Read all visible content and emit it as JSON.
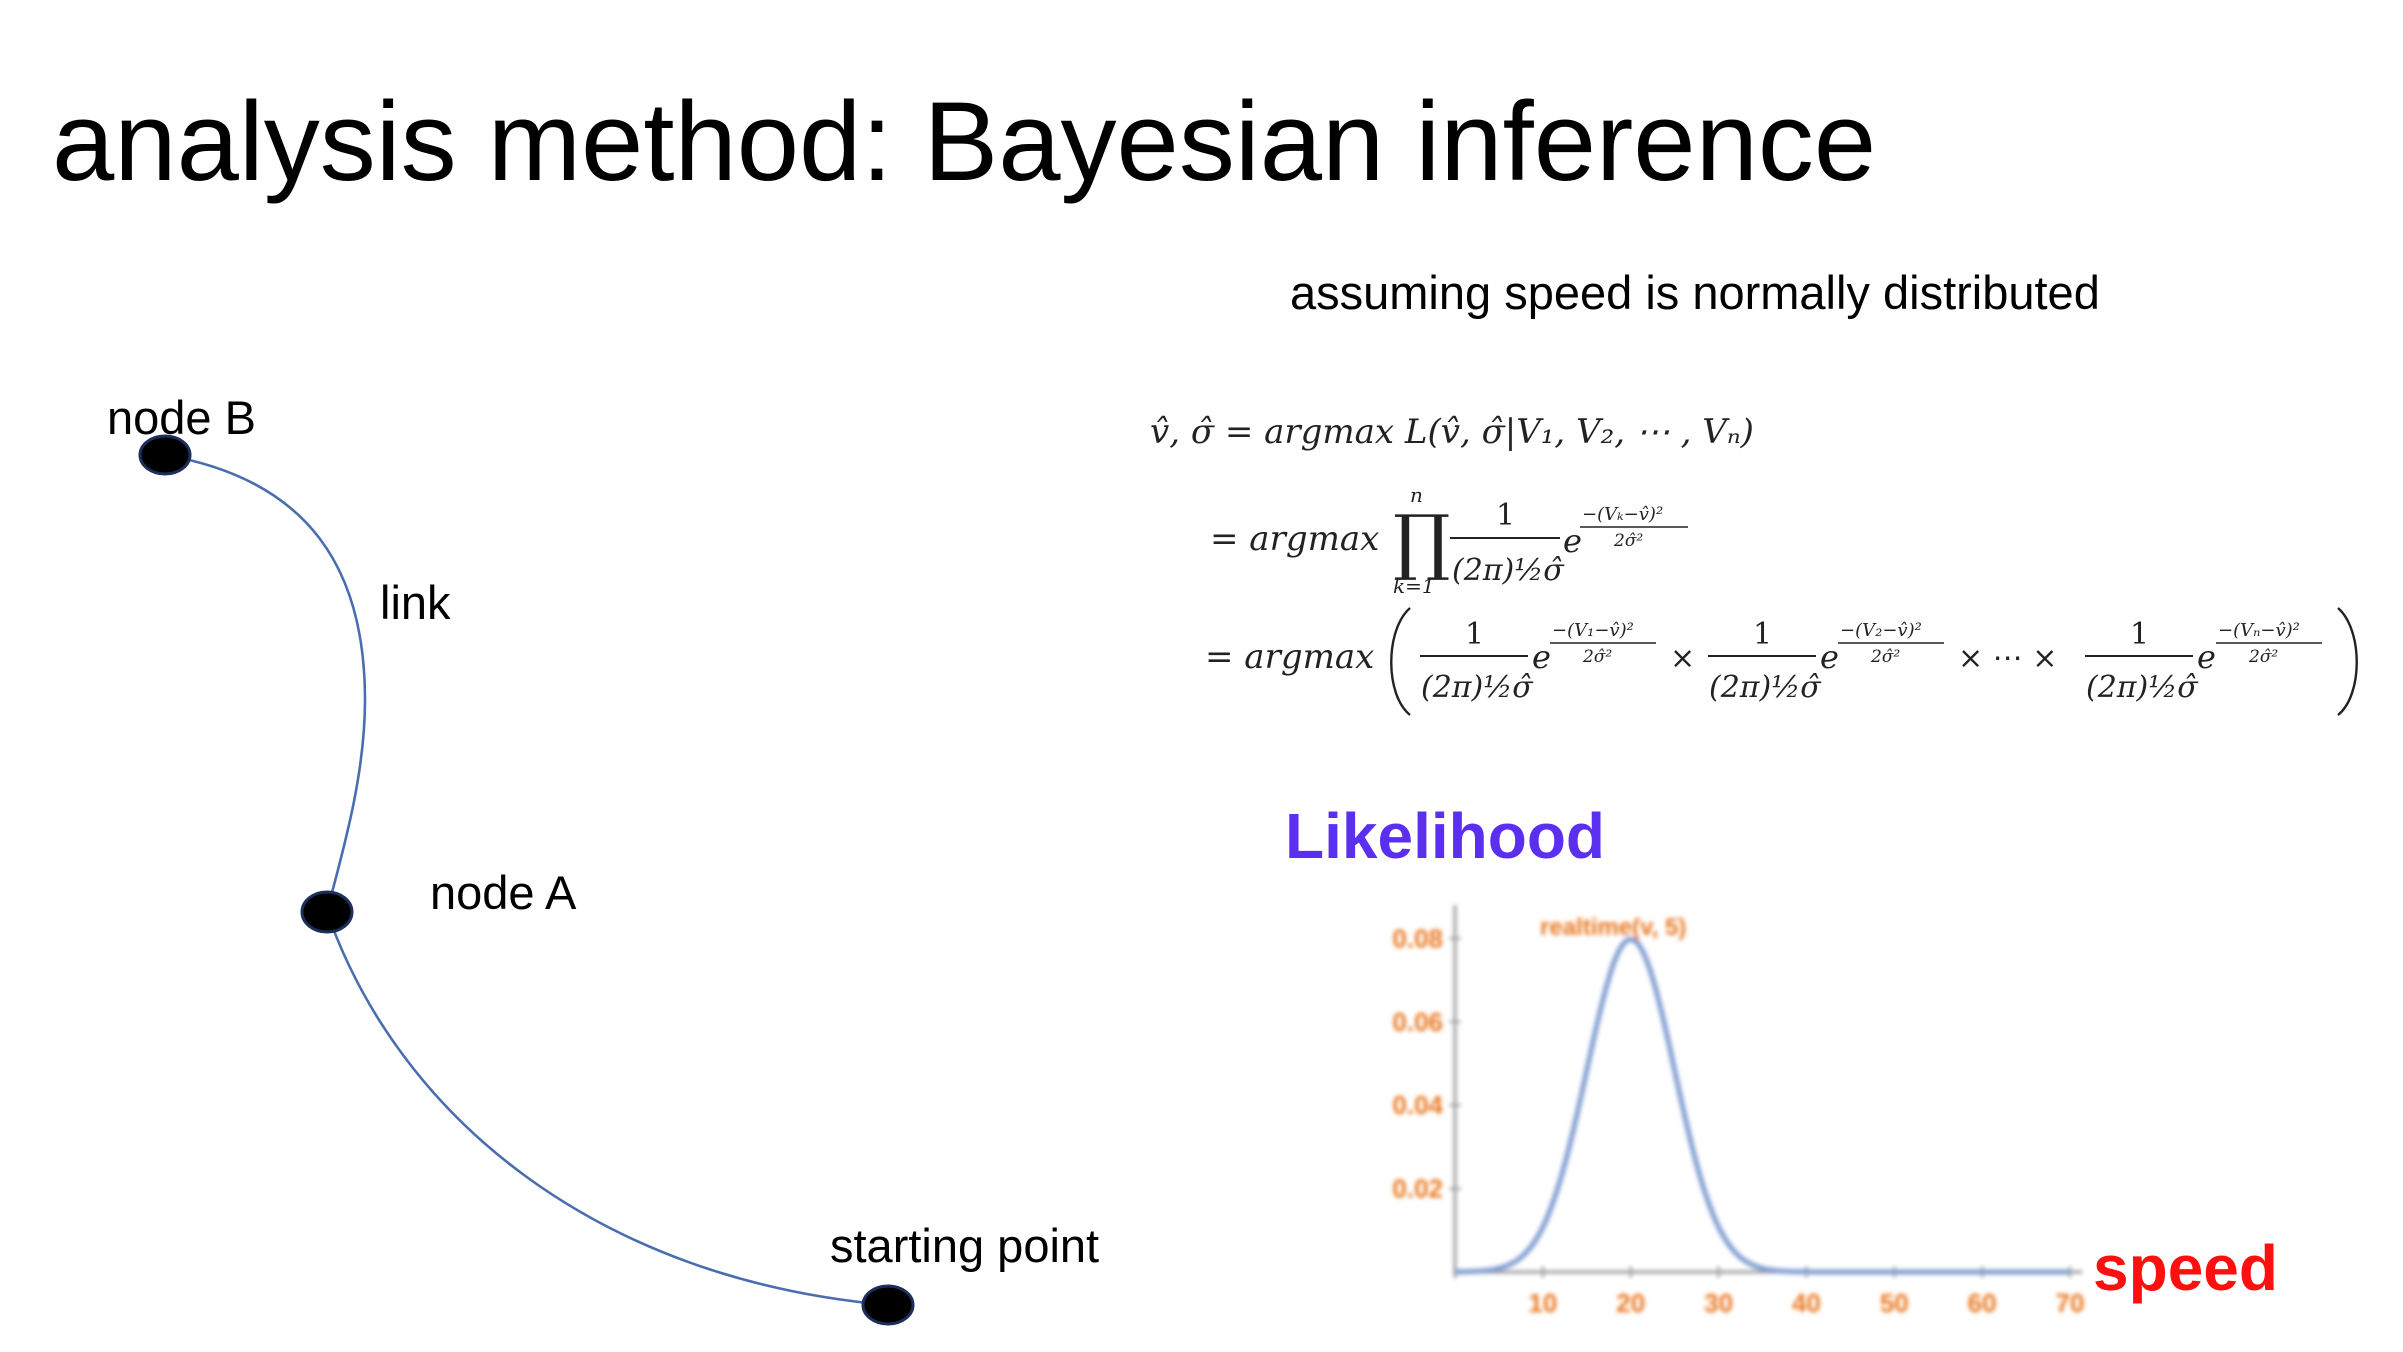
{
  "slide": {
    "title": "analysis method: Bayesian inference",
    "subtitle": "assuming speed is normally distributed"
  },
  "diagram": {
    "labels": {
      "node_b": "node B",
      "link": "link",
      "node_a": "node A",
      "start": "starting point"
    },
    "line_color": "#4a6db0",
    "node_color": "#000000"
  },
  "formula": {
    "line1_lhs": "v̂, σ̂ = argmax L(v̂, σ̂|V₁, V₂, ⋯ , Vₙ)",
    "argmax": "= argmax",
    "prod": "∏",
    "prod_top": "n",
    "prod_bottom": "k=1",
    "one": "1",
    "denom": "(2π)½σ̂",
    "e": "e",
    "exp_k": "−(Vₖ−v̂)²",
    "exp_1": "−(V₁−v̂)²",
    "exp_2": "−(V₂−v̂)²",
    "exp_n": "−(Vₙ−v̂)²",
    "exp_den": "2σ̂²",
    "times": "×",
    "dots": "× ⋯ ×"
  },
  "chart_data": {
    "type": "line",
    "title": "Likelihood",
    "xlabel": "speed",
    "ylabel": "",
    "plot_label": "realtime(v, 5)",
    "xlim": [
      0,
      70
    ],
    "ylim": [
      0,
      0.088
    ],
    "x_ticks": [
      "10",
      "20",
      "30",
      "40",
      "50",
      "60",
      "70"
    ],
    "y_ticks": [
      "0.02",
      "0.04",
      "0.06",
      "0.08"
    ],
    "series": [
      {
        "distribution": "normal",
        "mean": 20,
        "sd": 5,
        "x": [
          0,
          5,
          10,
          12,
          14,
          16,
          18,
          20,
          22,
          24,
          26,
          28,
          30,
          35,
          40,
          50,
          60,
          70
        ],
        "values": [
          3e-05,
          0.0009,
          0.0108,
          0.0222,
          0.0389,
          0.058,
          0.0737,
          0.0798,
          0.0737,
          0.058,
          0.0389,
          0.0222,
          0.0108,
          0.0009,
          3e-05,
          0,
          0,
          0
        ]
      }
    ],
    "colors": {
      "title": "#5b2ff0",
      "xlabel": "#ff1010",
      "ticks": "#e8761c",
      "curve": "#7f9cd0",
      "axis": "#9a9a9a"
    }
  }
}
